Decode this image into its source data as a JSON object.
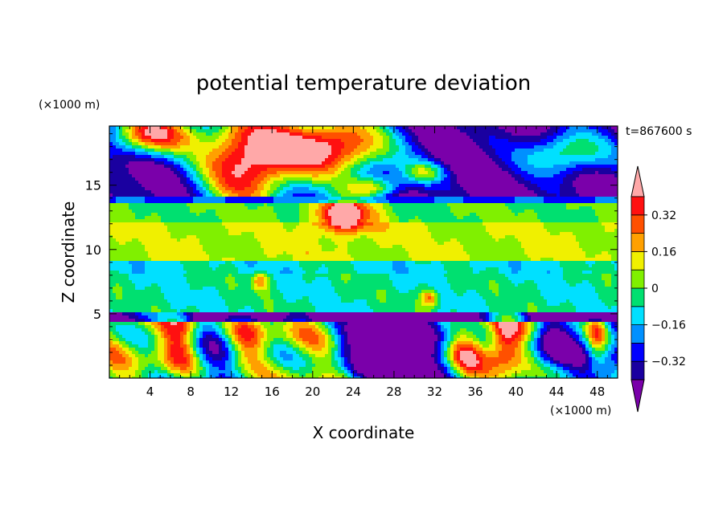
{
  "chart_data": {
    "type": "heatmap",
    "title": "potential temperature deviation",
    "xlabel": "X coordinate",
    "ylabel": "Z coordinate",
    "x_unit": "(×1000 m)",
    "y_unit": "(×1000 m)",
    "time_label": "t=867600 s",
    "xlim": [
      0,
      50
    ],
    "ylim": [
      0,
      19.6
    ],
    "x_ticks": [
      4,
      8,
      12,
      16,
      20,
      24,
      28,
      32,
      36,
      40,
      44,
      48
    ],
    "y_ticks": [
      5,
      10,
      15
    ],
    "colorbar": {
      "labels": [
        "0.32",
        "0.16",
        "0",
        "−0.16",
        "−0.32"
      ],
      "label_values": [
        0.32,
        0.16,
        0,
        -0.16,
        -0.32
      ],
      "levels": [
        -0.4,
        -0.32,
        -0.24,
        -0.16,
        -0.08,
        0,
        0.08,
        0.16,
        0.24,
        0.32,
        0.4
      ],
      "colors": [
        "#7a00aa",
        "#1a00a0",
        "#0000ff",
        "#0090ff",
        "#00e0ff",
        "#00e070",
        "#80f000",
        "#f0f000",
        "#ffa000",
        "#ff5000",
        "#ff1010",
        "#ffa8a8"
      ],
      "extend": "both"
    }
  }
}
